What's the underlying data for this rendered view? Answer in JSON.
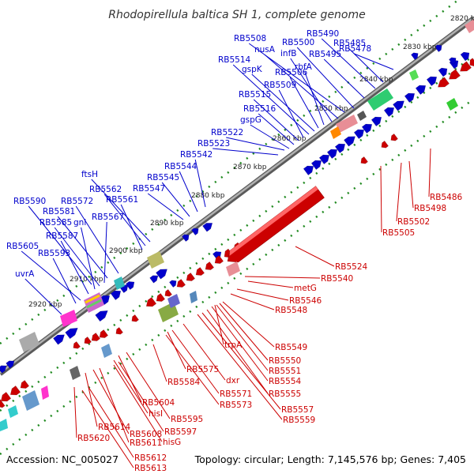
{
  "title": "Rhodopirellula baltica SH 1, complete genome",
  "accession": "Accession: NC_005027",
  "summary": "Topology: circular; Length: 7,145,576 bp; Genes: 7,405",
  "colors": {
    "plus_strand": "#0000cc",
    "minus_strand": "#cc0000",
    "backbone": "#7f7f7f",
    "tick": "#228b22"
  },
  "kbp_labels": [
    "2820 kbp",
    "2830 kbp",
    "2840 kbp",
    "2850 kbp",
    "2860 kbp",
    "2870 kbp",
    "2880 kbp",
    "2890 kbp",
    "2900 kbp",
    "2910 kbp",
    "2920 kbp"
  ],
  "plus_labels": [
    "RB5478",
    "RB5485",
    "RB5490",
    "RB5495",
    "RB5500",
    "RB5508",
    "nusA",
    "infB",
    "rbfA",
    "RB5506",
    "gspK",
    "RB5514",
    "RB5509",
    "RB5515",
    "RB5516",
    "gspG",
    "RB5522",
    "RB5523",
    "RB5542",
    "RB5544",
    "RB5545",
    "RB5547",
    "ftsH",
    "RB5562",
    "RB5561",
    "RB5590",
    "RB5572",
    "RB5581",
    "RB5567",
    "RB5585",
    "gnl",
    "RB5587",
    "RB5605",
    "RB5593",
    "uvrA"
  ],
  "minus_labels": [
    "RB5486",
    "RB5498",
    "RB5502",
    "RB5505",
    "RB5524",
    "RB5540",
    "metG",
    "RB5546",
    "RB5548",
    "RB5549",
    "trpA",
    "RB5550",
    "RB5551",
    "RB5554",
    "RB5555",
    "RB5557",
    "RB5559",
    "RB5575",
    "dxr",
    "RB5584",
    "RB5571",
    "RB5573",
    "RB5604",
    "hisI",
    "RB5595",
    "RB5597",
    "RB5611",
    "RB5614",
    "RB5608",
    "hisG",
    "RB5620",
    "RB5612",
    "RB5613"
  ]
}
